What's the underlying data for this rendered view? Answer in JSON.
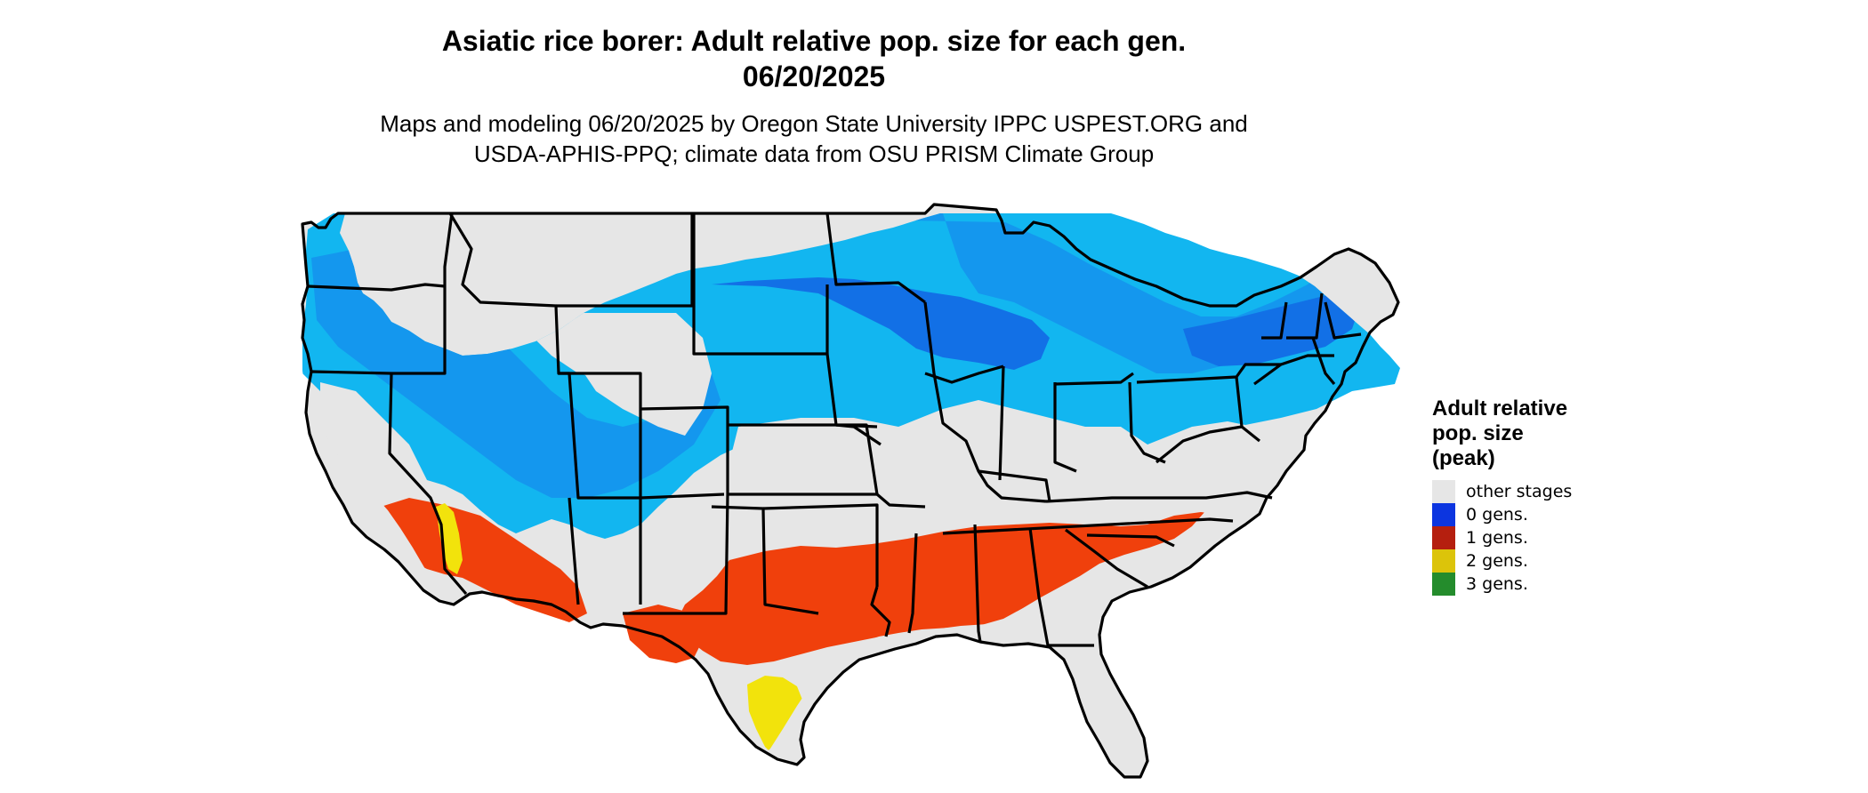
{
  "title": {
    "line1": "Asiatic rice borer: Adult relative pop. size for each gen.",
    "line2": "06/20/2025"
  },
  "subtitle": {
    "line1": "Maps and modeling 06/20/2025 by Oregon State University IPPC USPEST.ORG and",
    "line2": "USDA-APHIS-PPQ; climate data from OSU PRISM Climate Group"
  },
  "legend": {
    "title_line1": "Adult relative",
    "title_line2": "pop. size",
    "title_line3": "(peak)",
    "items": [
      {
        "label": "other stages",
        "color": "#e6e6e6"
      },
      {
        "label": "0 gens.",
        "color": "#0c35e0"
      },
      {
        "label": "1 gens.",
        "color": "#b51f0f"
      },
      {
        "label": "2 gens.",
        "color": "#dcc40a"
      },
      {
        "label": "3 gens.",
        "color": "#248c2c"
      }
    ]
  },
  "map": {
    "region": "contiguous-united-states",
    "region_colors": {
      "background": "#e6e6e6",
      "zero_gen_light": "#12b6f0",
      "zero_gen_mid": "#1497ee",
      "zero_gen_dark": "#1270e6",
      "one_gen": "#f0400c",
      "two_gen": "#f2e30c",
      "border": "#000000"
    }
  }
}
